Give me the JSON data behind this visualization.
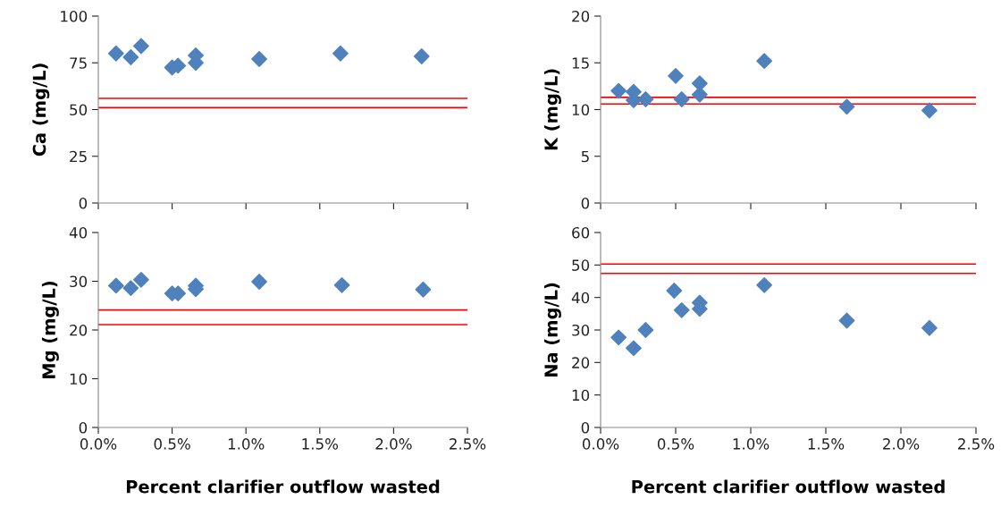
{
  "chart_data": [
    {
      "type": "scatter",
      "ylabel": "Ca (mg/L)",
      "marker": "diamond",
      "tick_labels": "y",
      "x": [
        0.12,
        0.22,
        0.29,
        0.5,
        0.54,
        0.66,
        0.66,
        1.09,
        1.64,
        2.19
      ],
      "series": [
        {
          "color": "#4f81bd",
          "values": [
            80,
            78,
            84,
            72.5,
            73.5,
            79,
            75,
            77,
            80,
            78.5
          ]
        }
      ],
      "xlim": [
        0,
        2.5
      ],
      "xticks": [
        {
          "value": 0,
          "label": null
        },
        {
          "value": 0.5,
          "label": null
        },
        {
          "value": 1,
          "label": null
        },
        {
          "value": 1.5,
          "label": null
        },
        {
          "value": 2,
          "label": null
        },
        {
          "value": 2.5,
          "label": null
        }
      ],
      "ylim": [
        0,
        100
      ],
      "yticks": [
        0,
        25,
        50,
        75,
        100
      ],
      "ref_lines": [
        {
          "axis": "y",
          "value": 56,
          "color": "#ff0000"
        },
        {
          "axis": "y",
          "value": 51,
          "color": "#ff0000"
        }
      ]
    },
    {
      "type": "scatter",
      "ylabel": "K (mg/L)",
      "marker": "diamond",
      "tick_labels": "y",
      "x": [
        0.12,
        0.22,
        0.22,
        0.3,
        0.5,
        0.54,
        0.66,
        0.66,
        1.09,
        1.64,
        2.19
      ],
      "series": [
        {
          "color": "#4f81bd",
          "values": [
            12,
            11.9,
            11,
            11.1,
            13.6,
            11.1,
            12.8,
            11.6,
            15.2,
            10.3,
            9.9
          ]
        }
      ],
      "xlim": [
        0,
        2.5
      ],
      "xticks": [
        {
          "value": 0,
          "label": null
        },
        {
          "value": 0.5,
          "label": null
        },
        {
          "value": 1,
          "label": null
        },
        {
          "value": 1.5,
          "label": null
        },
        {
          "value": 2,
          "label": null
        },
        {
          "value": 2.5,
          "label": null
        }
      ],
      "ylim": [
        0,
        20
      ],
      "yticks": [
        0,
        5,
        10,
        15,
        20
      ],
      "ref_lines": [
        {
          "axis": "y",
          "value": 11.3,
          "color": "#ff0000"
        },
        {
          "axis": "y",
          "value": 10.6,
          "color": "#ff0000"
        }
      ]
    },
    {
      "type": "scatter",
      "ylabel": "Mg (mg/L)",
      "xlabel": "Percent clarifier outflow wasted",
      "marker": "diamond",
      "x": [
        0.12,
        0.22,
        0.29,
        0.5,
        0.54,
        0.66,
        0.66,
        1.09,
        1.65,
        2.2
      ],
      "series": [
        {
          "color": "#4f81bd",
          "values": [
            29.1,
            28.6,
            30.3,
            27.5,
            27.5,
            29.1,
            28.4,
            29.9,
            29.2,
            28.3
          ]
        }
      ],
      "xlim": [
        0,
        2.5
      ],
      "xticks": [
        {
          "value": 0,
          "label": "0.0%"
        },
        {
          "value": 0.5,
          "label": "0.5%"
        },
        {
          "value": 1,
          "label": "1.0%"
        },
        {
          "value": 1.5,
          "label": "1.5%"
        },
        {
          "value": 2,
          "label": "2.0%"
        },
        {
          "value": 2.5,
          "label": "2.5%"
        }
      ],
      "ylim": [
        0,
        40
      ],
      "yticks": [
        0,
        10,
        20,
        30,
        40
      ],
      "ref_lines": [
        {
          "axis": "y",
          "value": 24.1,
          "color": "#ff0000"
        },
        {
          "axis": "y",
          "value": 21.1,
          "color": "#ff0000"
        }
      ]
    },
    {
      "type": "scatter",
      "ylabel": "Na (mg/L)",
      "xlabel": "Percent clarifier outflow wasted",
      "marker": "diamond",
      "x": [
        0.12,
        0.22,
        0.3,
        0.49,
        0.54,
        0.66,
        0.66,
        1.09,
        1.64,
        2.19
      ],
      "series": [
        {
          "color": "#4f81bd",
          "values": [
            27.7,
            24.4,
            30,
            42.1,
            36.1,
            38.4,
            36.5,
            43.8,
            32.9,
            30.6
          ]
        }
      ],
      "xlim": [
        0,
        2.5
      ],
      "xticks": [
        {
          "value": 0,
          "label": "0.0%"
        },
        {
          "value": 0.5,
          "label": "0.5%"
        },
        {
          "value": 1,
          "label": "1.0%"
        },
        {
          "value": 1.5,
          "label": "1.5%"
        },
        {
          "value": 2,
          "label": "2.0%"
        },
        {
          "value": 2.5,
          "label": "2.5%"
        }
      ],
      "ylim": [
        0,
        60
      ],
      "yticks": [
        0,
        10,
        20,
        30,
        40,
        50,
        60
      ],
      "ref_lines": [
        {
          "axis": "y",
          "value": 50.3,
          "color": "#ff0000"
        },
        {
          "axis": "y",
          "value": 47.4,
          "color": "#ff0000"
        }
      ]
    }
  ]
}
